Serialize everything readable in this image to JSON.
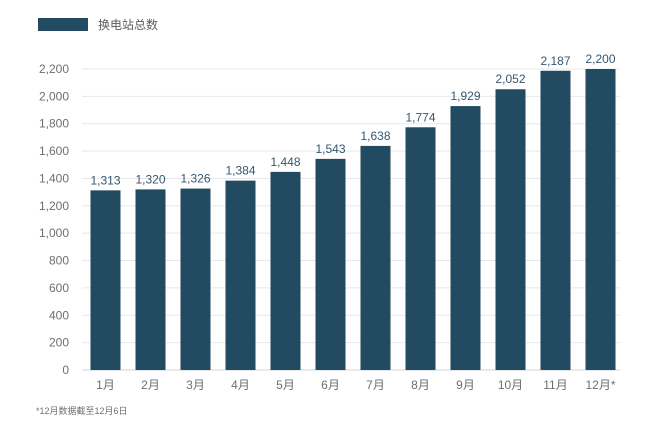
{
  "chart_data": {
    "type": "bar",
    "categories": [
      "1月",
      "2月",
      "3月",
      "4月",
      "5月",
      "6月",
      "7月",
      "8月",
      "9月",
      "10月",
      "11月",
      "12月*"
    ],
    "series": [
      {
        "name": "换电站总数",
        "color": "#224a60",
        "values": [
          1313,
          1320,
          1326,
          1384,
          1448,
          1543,
          1638,
          1774,
          1929,
          2052,
          2187,
          2200
        ],
        "labels": [
          "1,313",
          "1,320",
          "1,326",
          "1,384",
          "1,448",
          "1,543",
          "1,638",
          "1,774",
          "1,929",
          "2,052",
          "2,187",
          "2,200"
        ]
      }
    ],
    "ylim": [
      0,
      2200
    ],
    "yticks": [
      0,
      200,
      400,
      600,
      800,
      1000,
      1200,
      1400,
      1600,
      1800,
      2000,
      2200
    ],
    "ytick_labels": [
      "0",
      "200",
      "400",
      "600",
      "800",
      "1,000",
      "1,200",
      "1,400",
      "1,600",
      "1,800",
      "2,000",
      "2,200"
    ],
    "grid": true,
    "legend_position": "top-left",
    "footnote": "*12月数据截至12月6日"
  }
}
